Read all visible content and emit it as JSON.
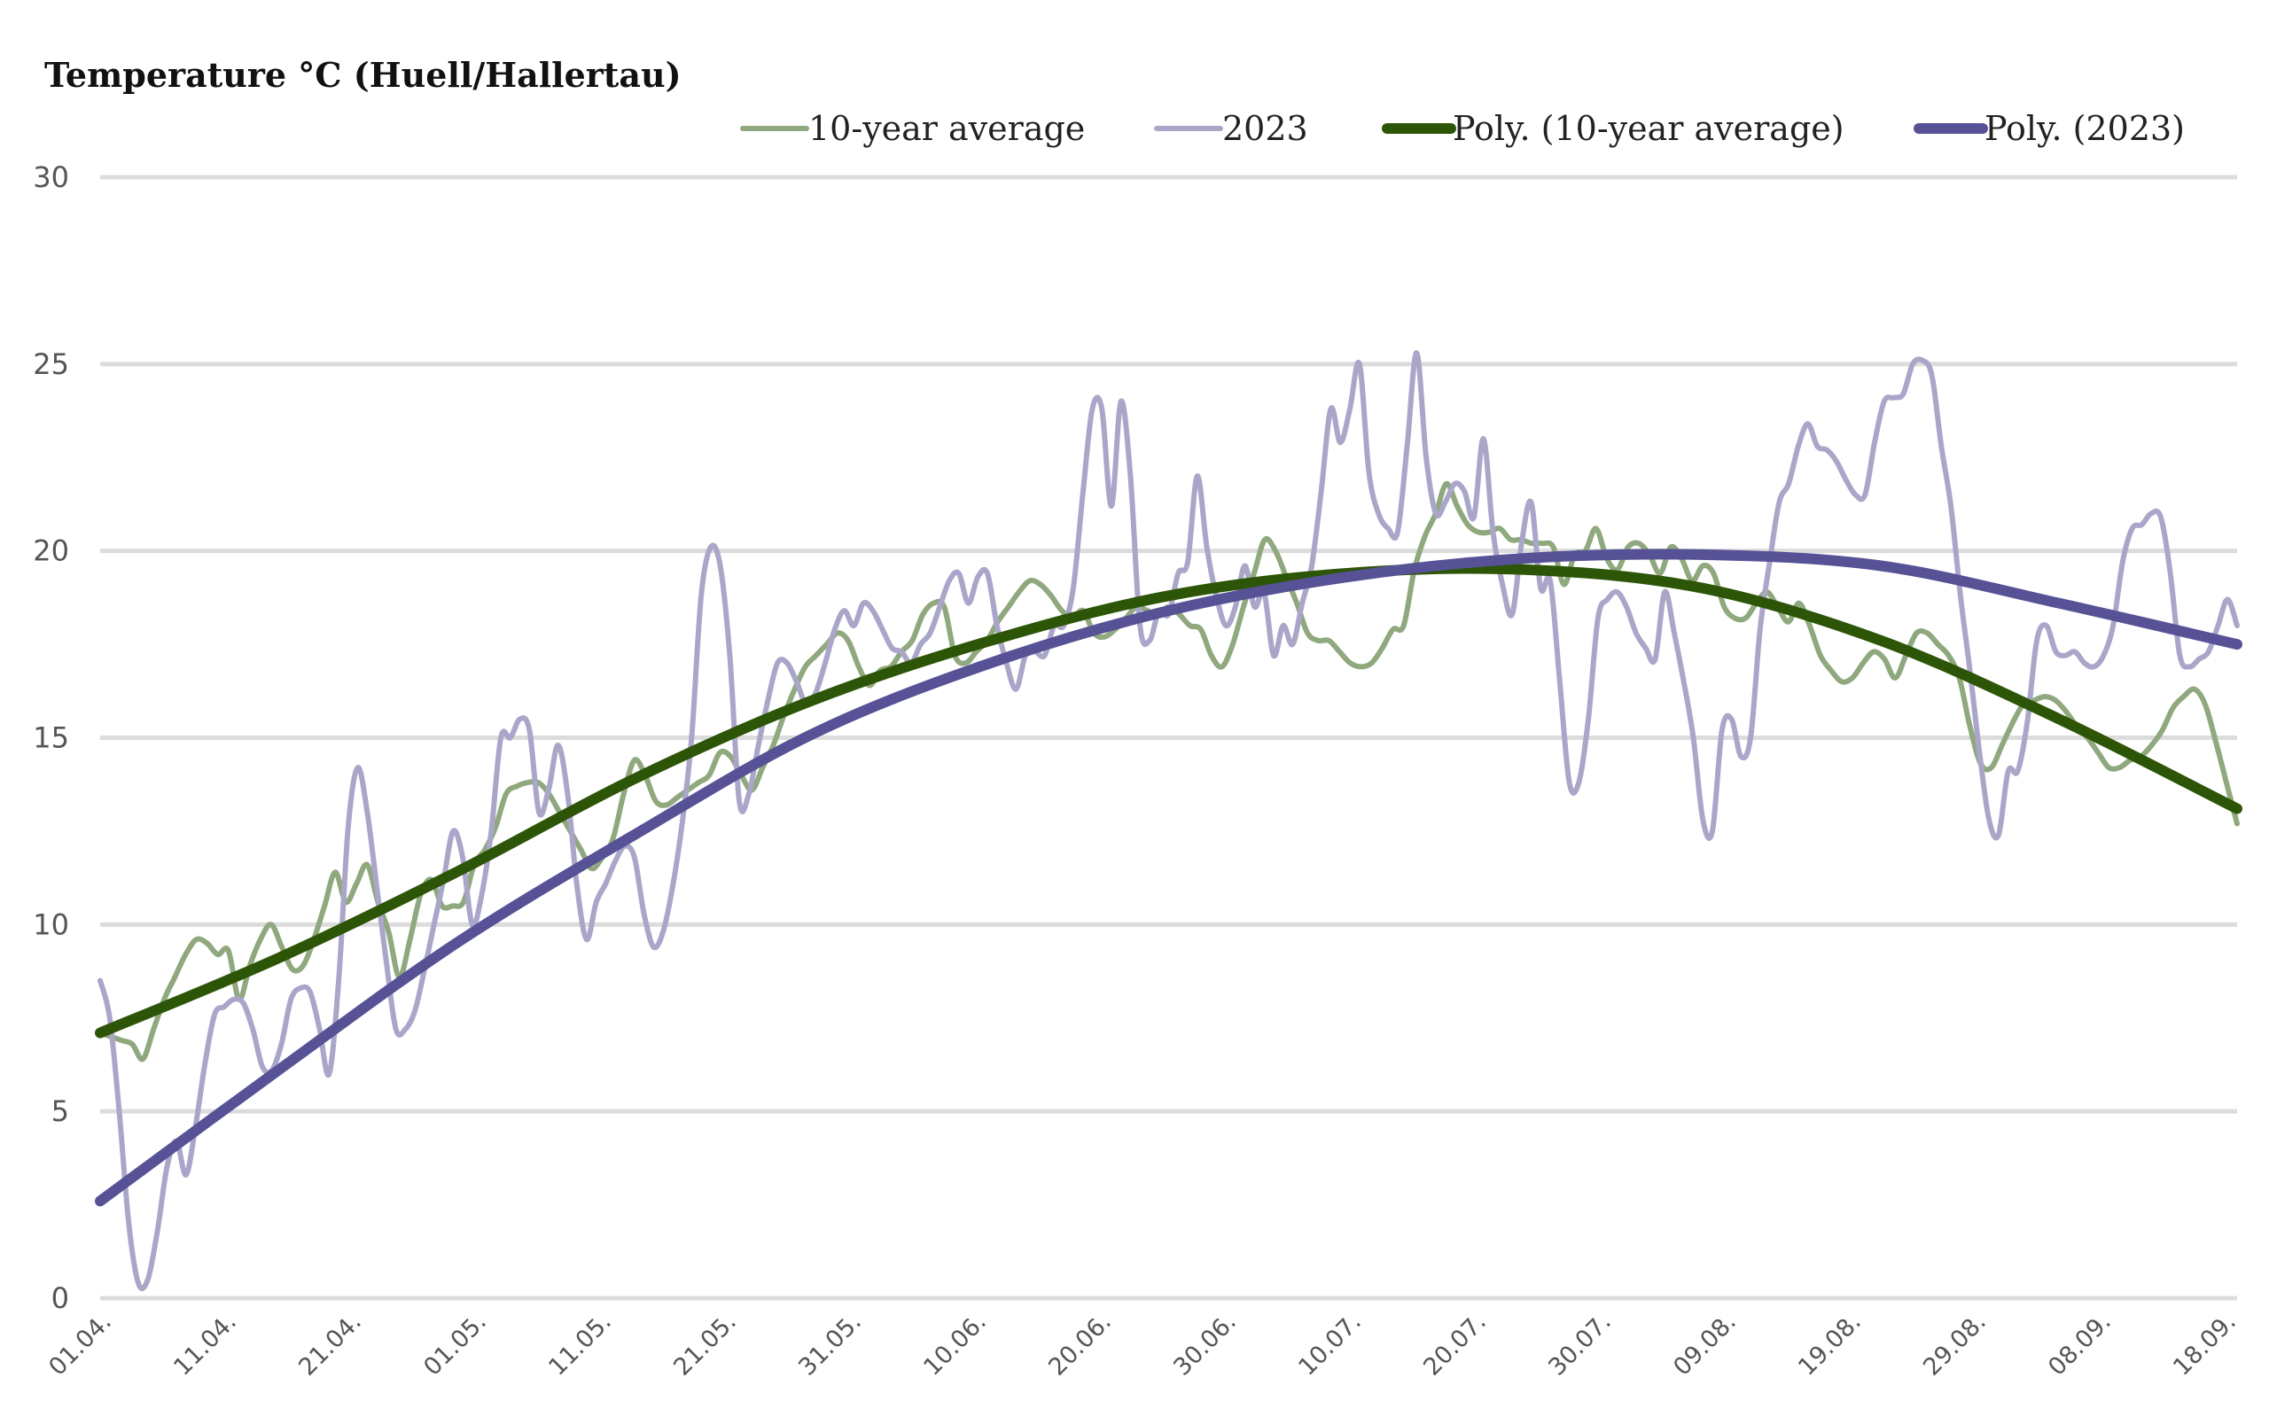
{
  "chart_data": {
    "type": "line",
    "title": "Temperature °C (Huell/Hallertau)",
    "xlabel": "",
    "ylabel": "",
    "ylim": [
      0,
      30
    ],
    "yticks": [
      0,
      5,
      10,
      15,
      20,
      25,
      30
    ],
    "grid": true,
    "legend_position": "top-right",
    "x_start": "01.04.",
    "x_end": "18.09.",
    "xticks": [
      "01.04.",
      "11.04.",
      "21.04.",
      "01.05.",
      "11.05.",
      "21.05.",
      "31.05.",
      "10.06.",
      "20.06.",
      "30.06.",
      "10.07.",
      "20.07.",
      "30.07.",
      "09.08.",
      "19.08.",
      "29.08.",
      "08.09.",
      "18.09."
    ],
    "colors": {
      "avg": "#8fa87e",
      "y2023": "#aaa6c9",
      "poly_avg": "#2d5508",
      "poly_2023": "#575296",
      "grid": "#dcdcdc"
    },
    "series": [
      {
        "name": "10-year average",
        "key": "avg",
        "values": [
          7.1,
          7.0,
          6.9,
          6.8,
          6.4,
          7.2,
          8.0,
          8.6,
          9.2,
          9.6,
          9.5,
          9.2,
          9.3,
          8.0,
          8.9,
          9.6,
          10.0,
          9.4,
          8.8,
          8.9,
          9.6,
          10.5,
          11.4,
          10.6,
          11.1,
          11.6,
          10.6,
          9.8,
          8.6,
          9.6,
          10.8,
          11.2,
          10.5,
          10.5,
          10.6,
          11.6,
          12.0,
          12.6,
          13.5,
          13.7,
          13.8,
          13.8,
          13.5,
          13.0,
          12.5,
          12.0,
          11.5,
          11.8,
          12.3,
          13.5,
          14.4,
          14.0,
          13.3,
          13.2,
          13.4,
          13.6,
          13.8,
          14.0,
          14.6,
          14.5,
          14.0,
          13.6,
          14.2,
          14.8,
          15.6,
          16.3,
          16.9,
          17.2,
          17.5,
          17.8,
          17.6,
          16.9,
          16.4,
          16.8,
          16.9,
          17.3,
          17.6,
          18.3,
          18.6,
          18.5,
          17.2,
          17.0,
          17.3,
          17.6,
          18.1,
          18.5,
          18.9,
          19.2,
          19.1,
          18.8,
          18.4,
          18.2,
          18.4,
          17.8,
          17.7,
          17.9,
          18.2,
          18.5,
          18.4,
          18.3,
          18.5,
          18.3,
          18.0,
          17.9,
          17.2,
          16.9,
          17.5,
          18.5,
          19.4,
          20.3,
          20.0,
          19.3,
          18.6,
          17.8,
          17.6,
          17.6,
          17.3,
          17.0,
          16.9,
          17.0,
          17.4,
          17.9,
          18.0,
          19.5,
          20.4,
          21.0,
          21.8,
          21.2,
          20.7,
          20.5,
          20.5,
          20.6,
          20.3,
          20.3,
          20.2,
          20.2,
          20.1,
          19.1,
          19.9,
          20.0,
          20.6,
          19.8,
          19.5,
          20.1,
          20.2,
          19.9,
          19.4,
          20.1,
          19.8,
          19.2,
          19.6,
          19.4,
          18.5,
          18.2,
          18.2,
          18.6,
          18.9,
          18.5,
          18.1,
          18.6,
          18.0,
          17.2,
          16.8,
          16.5,
          16.6,
          17.0,
          17.3,
          17.1,
          16.6,
          17.2,
          17.8,
          17.8,
          17.5,
          17.2,
          16.6,
          15.3,
          14.3,
          14.2,
          14.8,
          15.4,
          15.9,
          16.0,
          16.1,
          16.0,
          15.7,
          15.3,
          15.0,
          14.6,
          14.2,
          14.2,
          14.4,
          14.5,
          14.8,
          15.2,
          15.8,
          16.1,
          16.3,
          15.9,
          14.9,
          13.8,
          12.7
        ]
      },
      {
        "name": "2023",
        "key": "y2023",
        "values": [
          8.5,
          7.5,
          5.0,
          2.0,
          0.4,
          0.5,
          1.8,
          3.5,
          4.2,
          3.3,
          4.6,
          6.3,
          7.6,
          7.8,
          8.0,
          7.9,
          7.2,
          6.2,
          6.1,
          6.8,
          8.0,
          8.3,
          8.2,
          7.2,
          6.0,
          8.5,
          12.6,
          14.2,
          13.0,
          11.0,
          9.0,
          7.2,
          7.2,
          7.7,
          8.8,
          10.0,
          11.2,
          12.5,
          11.8,
          10.0,
          10.8,
          12.5,
          15.0,
          15.0,
          15.5,
          15.2,
          13.0,
          13.6,
          14.8,
          13.5,
          11.0,
          9.6,
          10.6,
          11.1,
          11.7,
          12.1,
          11.8,
          10.3,
          9.4,
          9.8,
          11.0,
          12.7,
          15.0,
          18.8,
          20.1,
          19.6,
          17.2,
          13.3,
          13.5,
          14.8,
          16.0,
          17.0,
          17.0,
          16.5,
          15.9,
          16.2,
          17.0,
          17.9,
          18.4,
          18.0,
          18.6,
          18.4,
          17.9,
          17.4,
          17.3,
          17.0,
          17.5,
          17.8,
          18.5,
          19.2,
          19.4,
          18.6,
          19.3,
          19.4,
          18.0,
          17.0,
          16.3,
          17.2,
          17.3,
          17.2,
          18.0,
          18.0,
          19.0,
          21.5,
          23.8,
          23.8,
          21.2,
          24.0,
          22.0,
          18.0,
          17.6,
          18.4,
          18.3,
          19.4,
          19.7,
          22.0,
          20.1,
          18.8,
          18.0,
          18.5,
          19.6,
          18.5,
          18.9,
          17.2,
          18.0,
          17.5,
          18.6,
          19.6,
          21.6,
          23.8,
          22.9,
          23.8,
          25.0,
          22.1,
          21.0,
          20.6,
          20.5,
          22.8,
          25.3,
          22.5,
          21.0,
          21.3,
          21.8,
          21.6,
          20.9,
          23.0,
          20.5,
          19.1,
          18.3,
          20.2,
          21.3,
          19.0,
          19.2,
          16.5,
          13.8,
          13.8,
          15.5,
          18.2,
          18.7,
          18.9,
          18.5,
          17.8,
          17.4,
          17.1,
          18.9,
          17.8,
          16.5,
          15.0,
          12.8,
          12.5,
          15.2,
          15.5,
          14.5,
          15.0,
          17.9,
          19.7,
          21.3,
          21.8,
          22.8,
          23.4,
          22.8,
          22.7,
          22.4,
          21.9,
          21.5,
          21.5,
          22.9,
          24.0,
          24.1,
          24.2,
          25.0,
          25.1,
          24.7,
          22.8,
          21.2,
          18.8,
          16.8,
          14.6,
          12.8,
          12.4,
          14.1,
          14.1,
          15.4,
          17.6,
          18.0,
          17.3,
          17.2,
          17.3,
          17.0,
          16.9,
          17.2,
          18.0,
          19.7,
          20.6,
          20.7,
          21.0,
          20.9,
          19.4,
          17.2,
          16.9,
          17.1,
          17.3,
          18.0,
          18.7,
          18.0
        ]
      },
      {
        "name": "Poly. (10-year average)",
        "key": "poly_avg",
        "trend": "polynomial",
        "values": [
          7.1,
          9.1,
          11.4,
          13.9,
          16.0,
          17.6,
          18.8,
          19.4,
          19.5,
          19.0,
          17.6,
          15.5,
          13.1
        ]
      },
      {
        "name": "Poly. (2023)",
        "key": "poly_2023",
        "trend": "polynomial",
        "values": [
          2.6,
          6.1,
          9.5,
          12.4,
          15.1,
          17.0,
          18.4,
          19.3,
          19.8,
          19.9,
          19.6,
          18.6,
          17.5
        ]
      }
    ]
  }
}
